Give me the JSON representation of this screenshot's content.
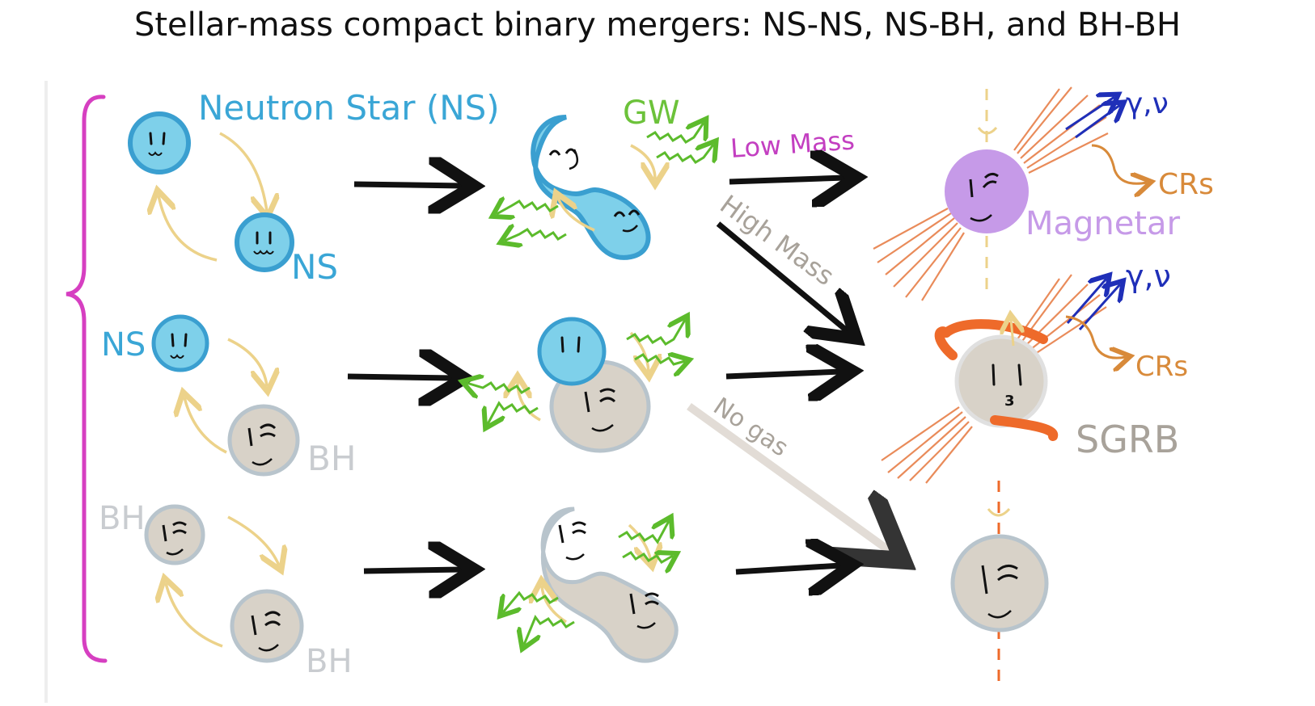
{
  "title": "Stellar-mass compact binary mergers: NS-NS, NS-BH, and BH-BH",
  "labels": {
    "neutron_star": "Neutron Star (NS)",
    "ns_row1": "NS",
    "ns_row2": "NS",
    "bh_row2": "BH",
    "bh_row3_top": "BH",
    "bh_row3_bottom": "BH",
    "gw": "GW",
    "low_mass": "Low Mass",
    "high_mass": "High Mass",
    "no_gas": "No gas",
    "magnetar": "Magnetar",
    "sgrb": "SGRB",
    "gamma_nu_1": "γ,ν",
    "gamma_nu_2": "γ,ν",
    "crs_1": "CRs",
    "crs_2": "CRs",
    "disk_number": "3"
  },
  "colors": {
    "ns": "#7ed0ea",
    "ns_edge": "#3a9fd0",
    "bh": "#d8d2c8",
    "bh_edge": "#b8c4cc",
    "magnetar": "#c69ae8",
    "gw": "#5cbb2c",
    "orbit": "#ecd28a",
    "brace": "#d63fc1",
    "label_blue": "#3aa6d6",
    "label_green": "#6cc23a",
    "label_magenta": "#c33fc1",
    "label_gray": "#a8a29a",
    "jet": "#e98b5a",
    "crs": "#d88a3a",
    "gamma": "#1f2fb8",
    "disk": "#ee6a2a"
  }
}
